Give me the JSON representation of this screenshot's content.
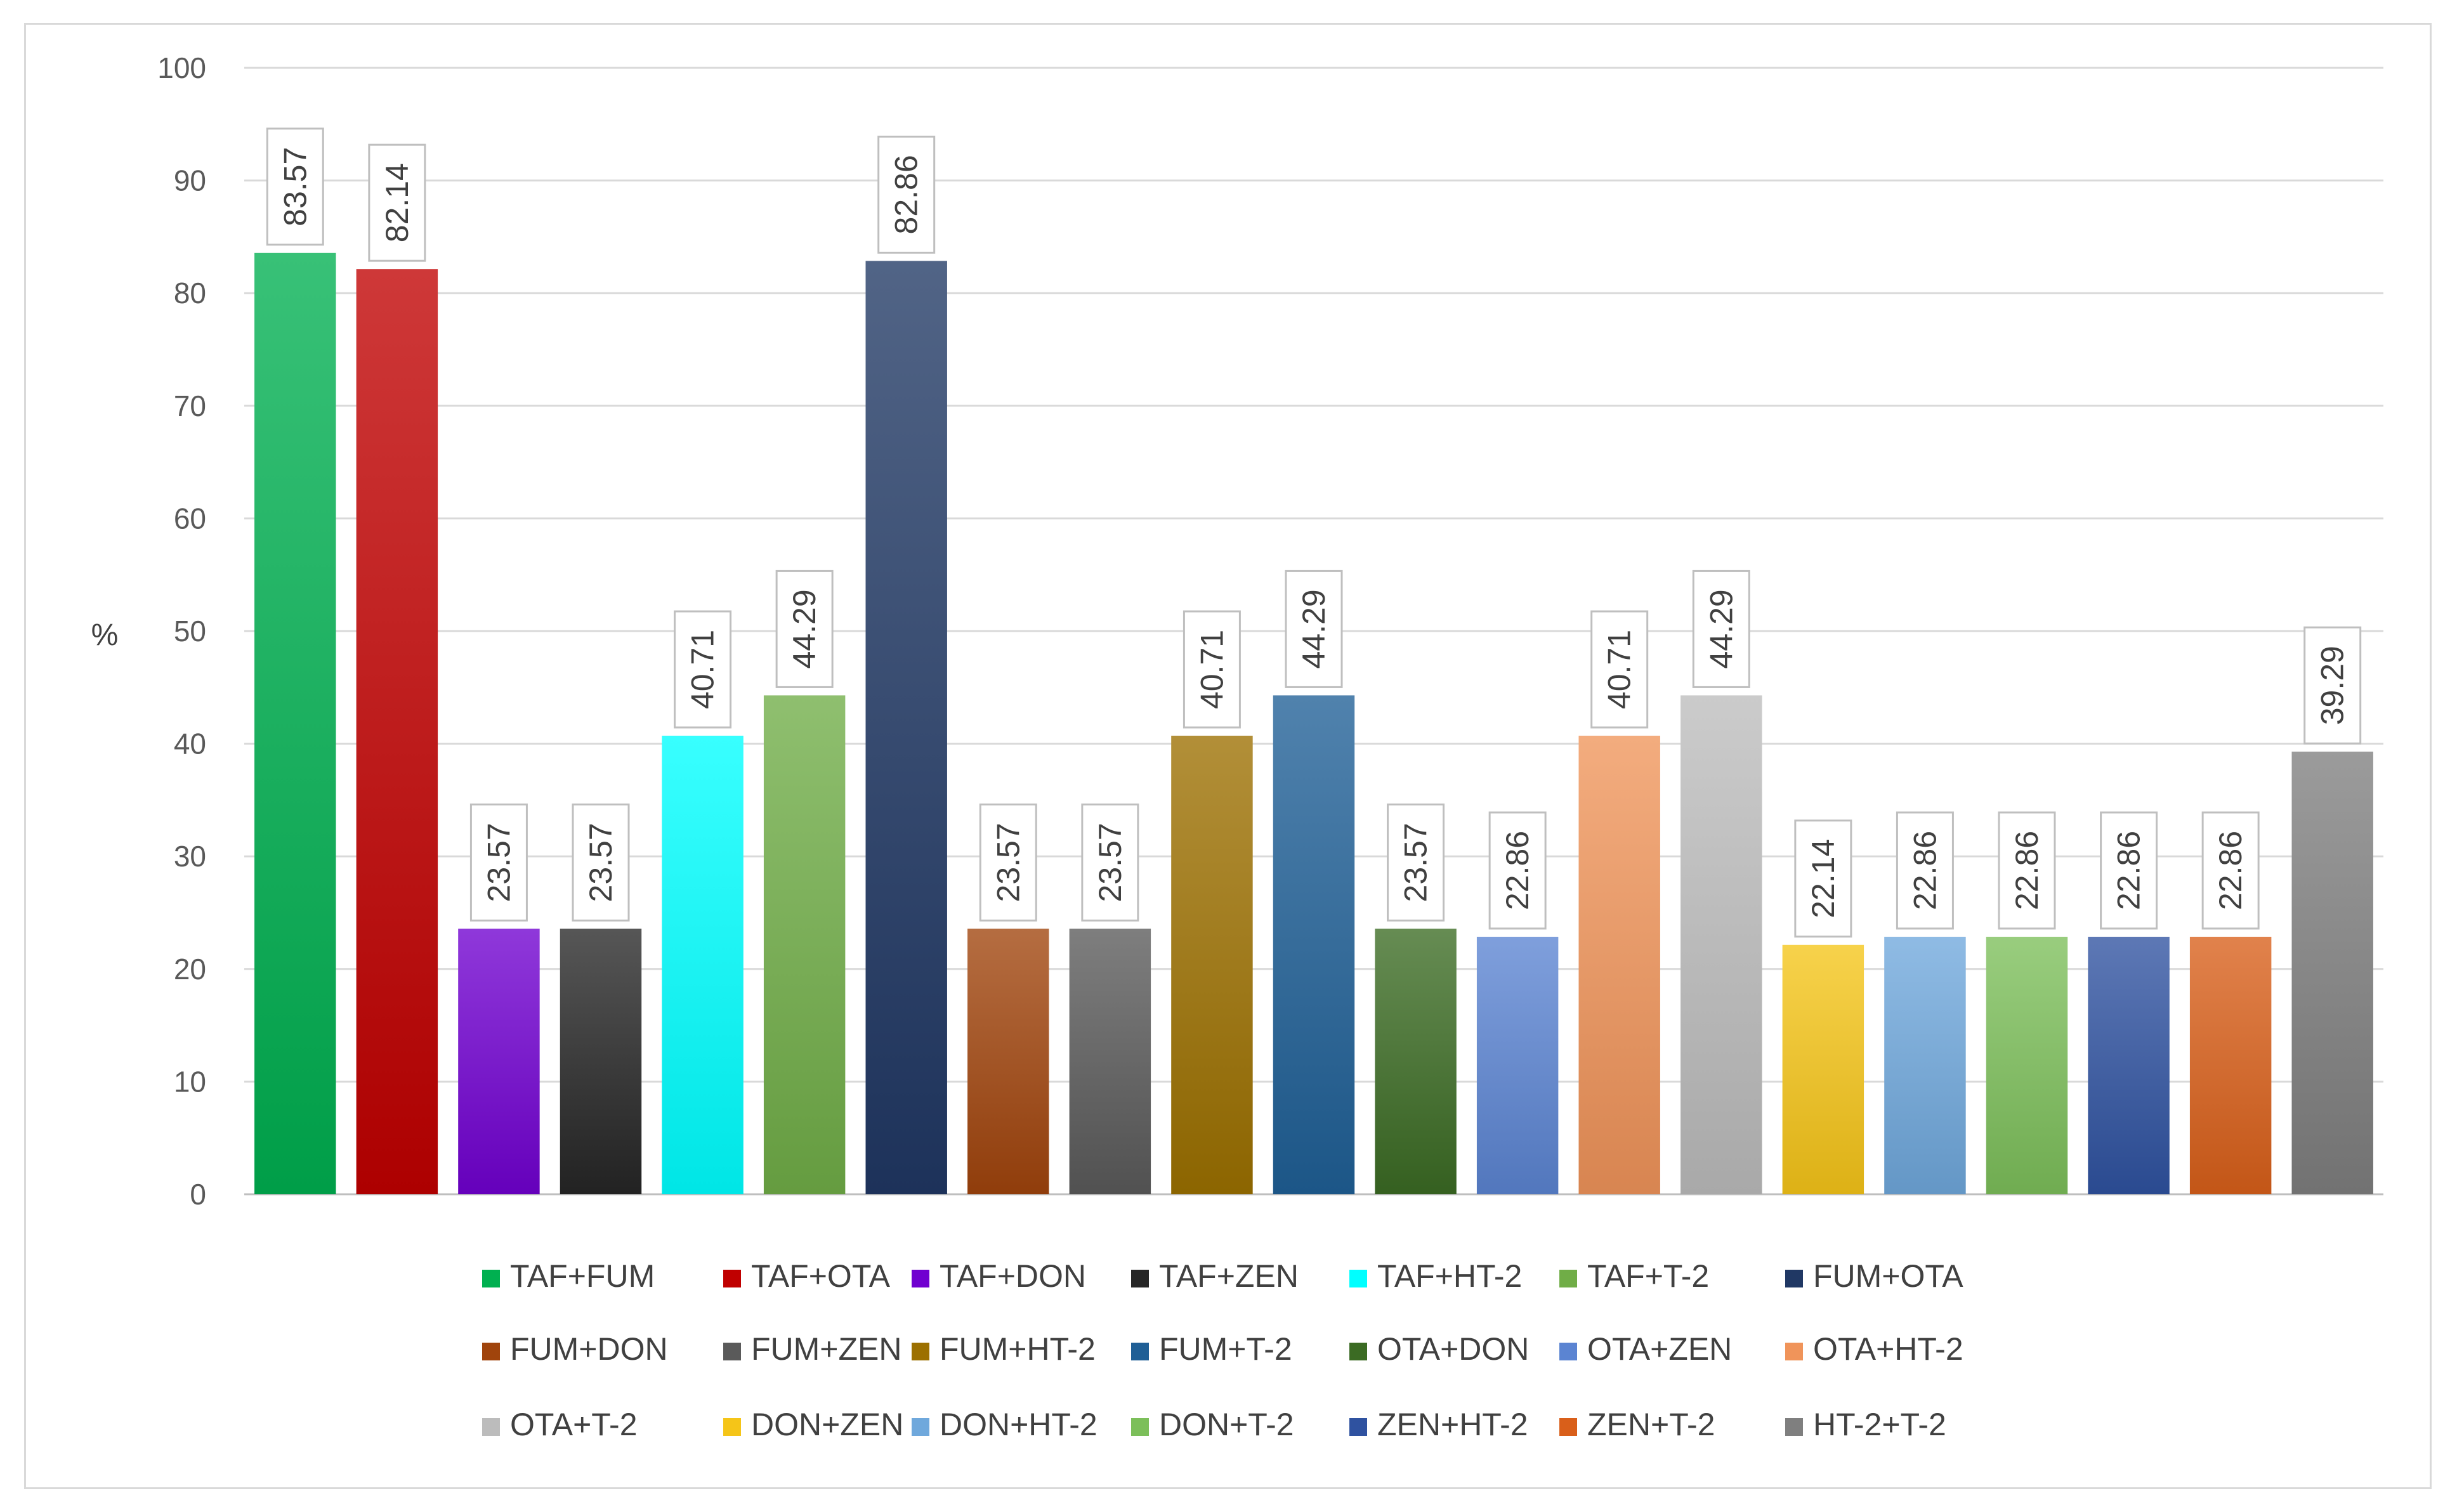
{
  "chart_data": {
    "type": "bar",
    "title": "",
    "xlabel": "",
    "ylabel": "%",
    "ylim": [
      0,
      100
    ],
    "yticks": [
      "0",
      "10",
      "20",
      "30",
      "40",
      "50",
      "60",
      "70",
      "80",
      "90",
      "100"
    ],
    "grid": true,
    "legend_position": "bottom",
    "categories": [
      "TAF+FUM",
      "TAF+OTA",
      "TAF+DON",
      "TAF+ZEN",
      "TAF+HT-2",
      "TAF+T-2",
      "FUM+OTA",
      "FUM+DON",
      "FUM+ZEN",
      "FUM+HT-2",
      "FUM+T-2",
      "OTA+DON",
      "OTA+ZEN",
      "OTA+HT-2",
      "OTA+T-2",
      "DON+ZEN",
      "DON+HT-2",
      "DON+T-2",
      "ZEN+HT-2",
      "ZEN+T-2",
      "HT-2+T-2"
    ],
    "values": [
      83.57,
      82.14,
      23.57,
      23.57,
      40.71,
      44.29,
      82.86,
      23.57,
      23.57,
      40.71,
      44.29,
      23.57,
      22.86,
      40.71,
      44.29,
      22.14,
      22.86,
      22.86,
      22.86,
      22.86,
      39.29
    ],
    "value_labels": [
      "83.57",
      "82.14",
      "23.57",
      "23.57",
      "40.71",
      "44.29",
      "82.86",
      "23.57",
      "23.57",
      "40.71",
      "44.29",
      "23.57",
      "22.86",
      "40.71",
      "44.29",
      "22.14",
      "22.86",
      "22.86",
      "22.86",
      "22.86",
      "39.29"
    ],
    "colors": [
      "#00b050",
      "#c00000",
      "#7000d0",
      "#262626",
      "#00ffff",
      "#70ad47",
      "#203864",
      "#a0440c",
      "#5a5a5a",
      "#9c7000",
      "#1f5f96",
      "#3b6b23",
      "#5b84d2",
      "#f0945a",
      "#bcbcbc",
      "#f5c518",
      "#6fa8dc",
      "#7cbf5a",
      "#2f52a0",
      "#d95f1a",
      "#7f7f7f"
    ]
  }
}
